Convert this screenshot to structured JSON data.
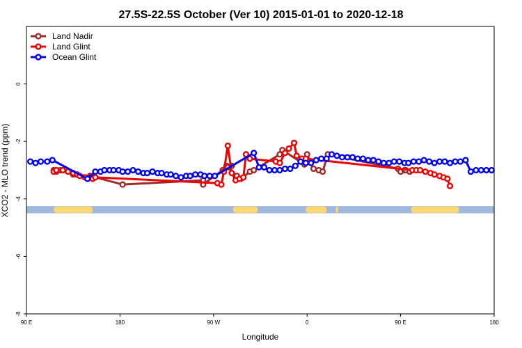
{
  "chart_data": {
    "type": "line",
    "title": "27.5S-22.5S October (Ver 10)   2015-01-01 to 2020-12-18",
    "xlabel": "Longitude",
    "ylabel": "XCO2 - MLO trend (ppm)",
    "xlim": [
      90,
      450
    ],
    "ylim": [
      -8,
      2
    ],
    "x_ticks": [
      {
        "value": 90,
        "label": "90 E"
      },
      {
        "value": 162,
        "label": "180"
      },
      {
        "value": 234,
        "label": "90 W"
      },
      {
        "value": 306,
        "label": "0"
      },
      {
        "value": 378,
        "label": "90 E"
      },
      {
        "value": 450,
        "label": "180"
      }
    ],
    "y_ticks": [
      0,
      -2,
      -4,
      -6,
      -8
    ],
    "grid": false,
    "legend_position": "top-left",
    "land_band": {
      "y_range": [
        -4.5,
        -4.25
      ],
      "ocean_color": "#a0b8dc",
      "land_color": "#fdd773",
      "land_segments": [
        [
          111,
          141
        ],
        [
          249,
          268
        ],
        [
          305,
          321
        ],
        [
          328,
          330
        ],
        [
          386,
          423
        ]
      ]
    },
    "series": [
      {
        "name": "Land Nadir",
        "color": "#9e2a2a",
        "x": [
          111,
          113,
          116,
          126,
          139,
          164,
          226,
          226,
          241,
          244,
          248,
          245,
          252,
          255,
          262,
          265,
          285,
          287,
          304,
          306,
          311,
          315,
          318,
          322,
          376,
          378,
          381,
          382,
          385
        ],
        "y": [
          -3.0,
          -3.05,
          -3.0,
          -3.15,
          -3.2,
          -3.5,
          -3.35,
          -3.5,
          -3.0,
          -2.85,
          -2.85,
          -2.9,
          -3.2,
          -3.3,
          -3.05,
          -3.0,
          -2.45,
          -2.3,
          -2.8,
          -2.45,
          -2.95,
          -3.0,
          -3.05,
          -2.45,
          -2.95,
          -3.05,
          -3.0,
          -3.0,
          -3.05
        ]
      },
      {
        "name": "Land Glint",
        "color": "#ee0000",
        "x": [
          111,
          113,
          118,
          122,
          126,
          129,
          131,
          135,
          139,
          141,
          143,
          237,
          240,
          242,
          245,
          248,
          251,
          254,
          257,
          259,
          262,
          282,
          285,
          289,
          292,
          296,
          298,
          302,
          305,
          387,
          390,
          393,
          397,
          401,
          404,
          408,
          411,
          414,
          416
        ],
        "y": [
          -3.05,
          -3.0,
          -3.0,
          -3.05,
          -3.1,
          -3.15,
          -3.2,
          -3.25,
          -3.25,
          -3.3,
          -3.25,
          -3.45,
          -3.5,
          -3.05,
          -2.15,
          -3.1,
          -3.35,
          -3.3,
          -3.25,
          -2.45,
          -2.6,
          -2.7,
          -2.75,
          -2.4,
          -2.25,
          -2.05,
          -2.5,
          -2.6,
          -2.6,
          -3.0,
          -3.0,
          -3.0,
          -3.05,
          -3.1,
          -3.15,
          -3.2,
          -3.25,
          -3.3,
          -3.55
        ]
      },
      {
        "name": "Ocean Glint",
        "color": "#0000ee",
        "x": [
          93,
          97,
          101,
          106,
          110,
          137,
          143,
          147,
          150,
          154,
          157,
          161,
          164,
          168,
          172,
          176,
          180,
          183,
          187,
          191,
          194,
          198,
          201,
          205,
          209,
          213,
          216,
          220,
          224,
          227,
          231,
          235,
          265,
          269,
          273,
          277,
          281,
          285,
          289,
          293,
          297,
          301,
          305,
          309,
          313,
          317,
          321,
          325,
          329,
          333,
          337,
          341,
          345,
          349,
          353,
          357,
          361,
          365,
          369,
          373,
          377,
          381,
          384,
          388,
          392,
          396,
          400,
          404,
          408,
          412,
          416,
          420,
          424,
          428,
          432,
          436,
          440,
          444,
          448
        ],
        "y": [
          -2.7,
          -2.75,
          -2.7,
          -2.7,
          -2.65,
          -3.3,
          -3.05,
          -3.05,
          -3.0,
          -3.0,
          -3.0,
          -3.0,
          -3.05,
          -3.05,
          -3.0,
          -3.05,
          -3.1,
          -3.1,
          -3.05,
          -3.1,
          -3.1,
          -3.15,
          -3.15,
          -3.2,
          -3.25,
          -3.2,
          -3.2,
          -3.15,
          -3.15,
          -3.2,
          -3.2,
          -3.2,
          -2.4,
          -2.9,
          -2.9,
          -3.0,
          -3.0,
          -3.0,
          -2.95,
          -2.95,
          -2.85,
          -2.7,
          -2.75,
          -2.75,
          -2.65,
          -2.6,
          -2.6,
          -2.45,
          -2.5,
          -2.55,
          -2.55,
          -2.55,
          -2.6,
          -2.6,
          -2.65,
          -2.65,
          -2.7,
          -2.75,
          -2.75,
          -2.7,
          -2.7,
          -2.75,
          -2.75,
          -2.7,
          -2.7,
          -2.65,
          -2.7,
          -2.75,
          -2.7,
          -2.7,
          -2.75,
          -2.7,
          -2.7,
          -2.65,
          -3.05,
          -3.0,
          -3.0,
          -3.0,
          -3.0
        ]
      }
    ]
  }
}
